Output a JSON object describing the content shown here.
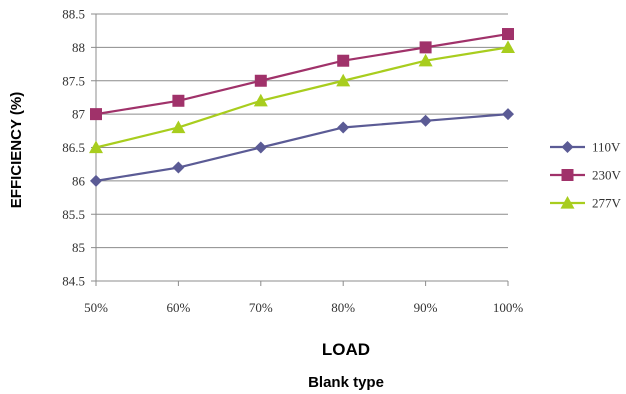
{
  "chart_data": {
    "type": "line",
    "categories": [
      "50%",
      "60%",
      "70%",
      "80%",
      "90%",
      "100%"
    ],
    "series": [
      {
        "name": "110V",
        "values": [
          86,
          86.2,
          86.5,
          86.8,
          86.9,
          87
        ],
        "color": "#5b5b95",
        "marker": "diamond"
      },
      {
        "name": "230V",
        "values": [
          87,
          87.2,
          87.5,
          87.8,
          88,
          88.2
        ],
        "color": "#a0326a",
        "marker": "square"
      },
      {
        "name": "277V",
        "values": [
          86.5,
          86.8,
          87.2,
          87.5,
          87.8,
          88
        ],
        "color": "#a8cd1e",
        "marker": "triangle"
      }
    ],
    "ylabel": "EFFICIENCY (%)",
    "xlabel": "LOAD",
    "subtitle": "Blank type",
    "ylim": [
      84.5,
      88.5
    ],
    "yticks": [
      "84.5",
      "85",
      "85.5",
      "86",
      "86.5",
      "87",
      "87.5",
      "88",
      "88.5"
    ],
    "grid": true,
    "legend_position": "right"
  }
}
